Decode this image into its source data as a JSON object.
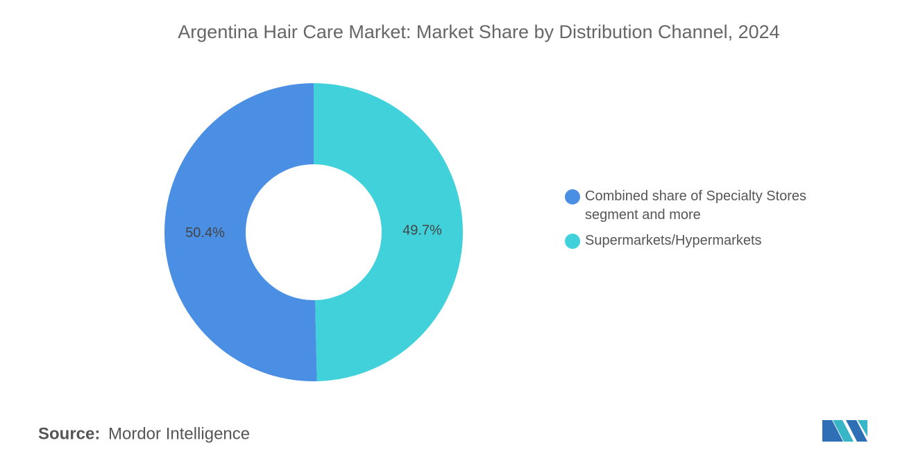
{
  "chart_data": {
    "type": "donut",
    "title": "Argentina Hair Care Market: Market Share by Distribution Channel, 2024",
    "categories": [
      "Combined share of Specialty Stores segment and more",
      "Supermarkets/Hypermarkets"
    ],
    "values": [
      50.4,
      49.7
    ],
    "value_labels": [
      "50.4%",
      "49.7%"
    ],
    "colors": [
      "#4a8fe3",
      "#40d1da"
    ],
    "legend_position": "right",
    "source_label": "Source:",
    "source": "Mordor Intelligence"
  }
}
